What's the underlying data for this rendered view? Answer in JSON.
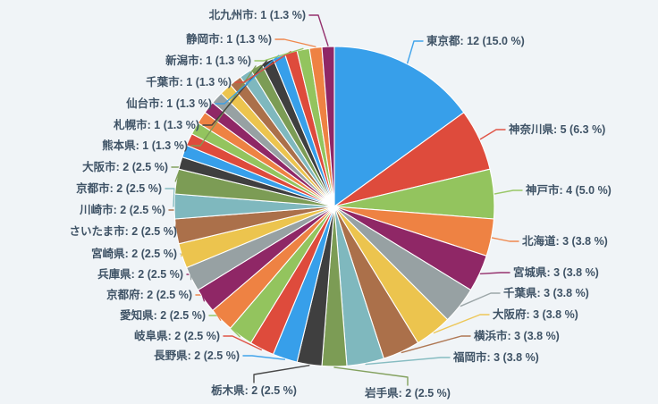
{
  "page": {
    "background": "#F0F4F7",
    "label_text_color": "#3F5366"
  },
  "chart_data": {
    "type": "pie",
    "total_units": 80,
    "unit_angle_deg": 4.5,
    "sort_order": "clockwise-descending-from-top",
    "legend_position": "none",
    "label_format": "{name}: {count} ({pct} %)",
    "palette": [
      "#379FEA",
      "#DE4B3C",
      "#93C45E",
      "#EE8243",
      "#8F2766",
      "#97A1A3",
      "#ECC44E",
      "#AB704A",
      "#7FB8BE",
      "#7C9C55",
      "#3F3F3F"
    ],
    "items": [
      {
        "name": "東京都",
        "count": 12,
        "pct": "15.0",
        "labeled": true
      },
      {
        "name": "神奈川県",
        "count": 5,
        "pct": "6.3",
        "labeled": true
      },
      {
        "name": "神戸市",
        "count": 4,
        "pct": "5.0",
        "labeled": true
      },
      {
        "name": "北海道",
        "count": 3,
        "pct": "3.8",
        "labeled": true
      },
      {
        "name": "宮城県",
        "count": 3,
        "pct": "3.8",
        "labeled": true
      },
      {
        "name": "千葉県",
        "count": 3,
        "pct": "3.8",
        "labeled": true
      },
      {
        "name": "大阪府",
        "count": 3,
        "pct": "3.8",
        "labeled": true
      },
      {
        "name": "横浜市",
        "count": 3,
        "pct": "3.8",
        "labeled": true
      },
      {
        "name": "福岡市",
        "count": 3,
        "pct": "3.8",
        "labeled": true
      },
      {
        "name": "岩手県",
        "count": 2,
        "pct": "2.5",
        "labeled": true
      },
      {
        "name": "栃木県",
        "count": 2,
        "pct": "2.5",
        "labeled": true
      },
      {
        "name": "長野県",
        "count": 2,
        "pct": "2.5",
        "labeled": true
      },
      {
        "name": "岐阜県",
        "count": 2,
        "pct": "2.5",
        "labeled": true
      },
      {
        "name": "愛知県",
        "count": 2,
        "pct": "2.5",
        "labeled": true
      },
      {
        "name": "京都府",
        "count": 2,
        "pct": "2.5",
        "labeled": true
      },
      {
        "name": "兵庫県",
        "count": 2,
        "pct": "2.5",
        "labeled": true
      },
      {
        "name": "宮崎県",
        "count": 2,
        "pct": "2.5",
        "labeled": true
      },
      {
        "name": "さいたま市",
        "count": 2,
        "pct": "2.5",
        "labeled": true
      },
      {
        "name": "川崎市",
        "count": 2,
        "pct": "2.5",
        "labeled": true
      },
      {
        "name": "京都市",
        "count": 2,
        "pct": "2.5",
        "labeled": true
      },
      {
        "name": "大阪市",
        "count": 2,
        "pct": "2.5",
        "labeled": true
      },
      {
        "name": "",
        "count": 1,
        "pct": "1.3",
        "labeled": false
      },
      {
        "name": "",
        "count": 1,
        "pct": "1.3",
        "labeled": false
      },
      {
        "name": "",
        "count": 1,
        "pct": "1.3",
        "labeled": false
      },
      {
        "name": "",
        "count": 1,
        "pct": "1.3",
        "labeled": false
      },
      {
        "name": "",
        "count": 1,
        "pct": "1.3",
        "labeled": false
      },
      {
        "name": "",
        "count": 1,
        "pct": "1.3",
        "labeled": false
      },
      {
        "name": "",
        "count": 1,
        "pct": "1.3",
        "labeled": false
      },
      {
        "name": "",
        "count": 1,
        "pct": "1.3",
        "labeled": false
      },
      {
        "name": "",
        "count": 1,
        "pct": "1.3",
        "labeled": false
      },
      {
        "name": "",
        "count": 1,
        "pct": "1.3",
        "labeled": false
      },
      {
        "name": "熊本県",
        "count": 1,
        "pct": "1.3",
        "labeled": true
      },
      {
        "name": "札幌市",
        "count": 1,
        "pct": "1.3",
        "labeled": true
      },
      {
        "name": "仙台市",
        "count": 1,
        "pct": "1.3",
        "labeled": true
      },
      {
        "name": "千葉市",
        "count": 1,
        "pct": "1.3",
        "labeled": true
      },
      {
        "name": "新潟市",
        "count": 1,
        "pct": "1.3",
        "labeled": true
      },
      {
        "name": "静岡市",
        "count": 1,
        "pct": "1.3",
        "labeled": true
      },
      {
        "name": "北九州市",
        "count": 1,
        "pct": "1.3",
        "labeled": true
      }
    ]
  }
}
